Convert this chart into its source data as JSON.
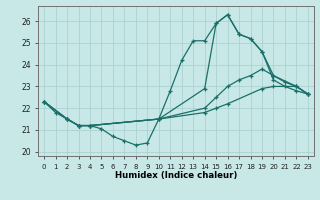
{
  "xlabel": "Humidex (Indice chaleur)",
  "bg_color": "#c8e8e8",
  "grid_color": "#a8cece",
  "line_color": "#1a7068",
  "xlim": [
    -0.5,
    23.5
  ],
  "ylim": [
    19.8,
    26.7
  ],
  "yticks": [
    20,
    21,
    22,
    23,
    24,
    25,
    26
  ],
  "xticks": [
    0,
    1,
    2,
    3,
    4,
    5,
    6,
    7,
    8,
    9,
    10,
    11,
    12,
    13,
    14,
    15,
    16,
    17,
    18,
    19,
    20,
    21,
    22,
    23
  ],
  "lines": [
    {
      "x": [
        0,
        1,
        2,
        3,
        4,
        5,
        6,
        7,
        8,
        9,
        10,
        11,
        12,
        13,
        14,
        15,
        16,
        17,
        18,
        19,
        20,
        21,
        22,
        23
      ],
      "y": [
        22.3,
        21.8,
        21.5,
        21.2,
        21.2,
        21.05,
        20.7,
        20.5,
        20.3,
        20.4,
        21.5,
        22.8,
        24.2,
        25.1,
        25.1,
        25.9,
        26.3,
        25.4,
        25.2,
        24.6,
        23.3,
        23.0,
        22.8,
        22.65
      ]
    },
    {
      "x": [
        0,
        2,
        3,
        4,
        10,
        14,
        15,
        16,
        17,
        18,
        19,
        20,
        21,
        22,
        23
      ],
      "y": [
        22.3,
        21.5,
        21.2,
        21.2,
        21.5,
        22.9,
        25.9,
        26.3,
        25.4,
        25.2,
        24.6,
        23.5,
        23.2,
        23.0,
        22.65
      ]
    },
    {
      "x": [
        0,
        2,
        3,
        4,
        10,
        14,
        15,
        16,
        17,
        18,
        19,
        20,
        22,
        23
      ],
      "y": [
        22.3,
        21.5,
        21.2,
        21.2,
        21.5,
        22.0,
        22.5,
        23.0,
        23.3,
        23.5,
        23.8,
        23.5,
        23.0,
        22.65
      ]
    },
    {
      "x": [
        0,
        2,
        3,
        4,
        10,
        14,
        15,
        16,
        19,
        20,
        22,
        23
      ],
      "y": [
        22.3,
        21.5,
        21.2,
        21.2,
        21.5,
        21.8,
        22.0,
        22.2,
        22.9,
        23.0,
        23.0,
        22.65
      ]
    }
  ]
}
